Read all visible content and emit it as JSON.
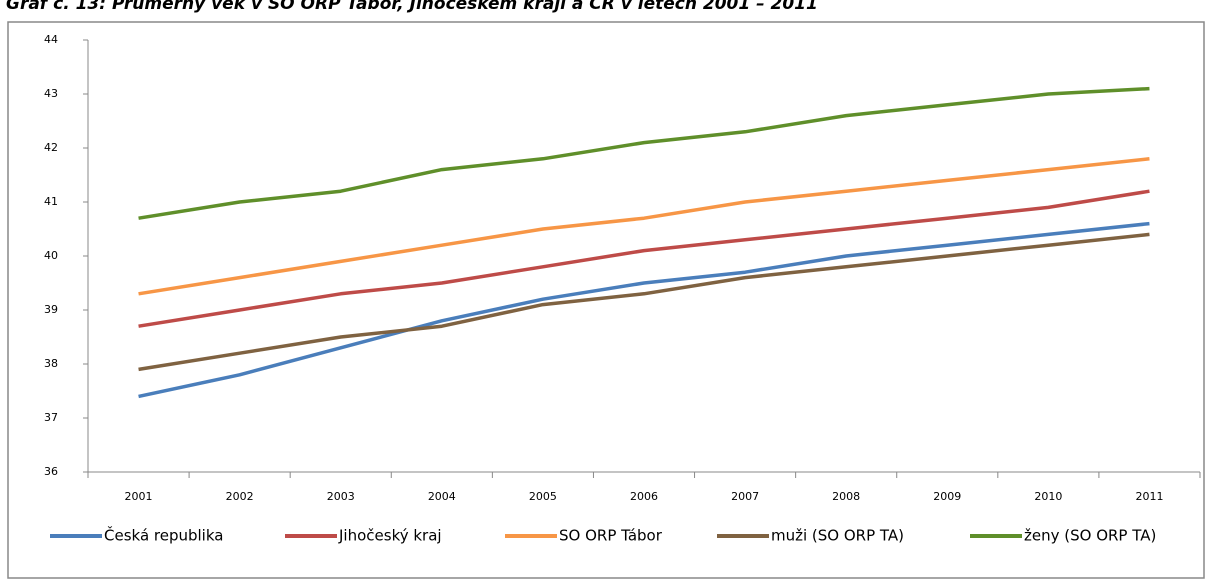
{
  "chart_data": {
    "type": "line",
    "title": "Graf č. 13: Průměrný věk v SO ORP Tábor, Jihočeském kraji a ČR v letech 2001 – 2011",
    "categories": [
      "2001",
      "2002",
      "2003",
      "2004",
      "2005",
      "2006",
      "2007",
      "2008",
      "2009",
      "2010",
      "2011"
    ],
    "series": [
      {
        "name": "Česká republika",
        "color": "#4a7ebb",
        "values": [
          37.4,
          37.8,
          38.3,
          38.8,
          39.2,
          39.5,
          39.7,
          40.0,
          40.2,
          40.4,
          40.6
        ]
      },
      {
        "name": "Jihočeský kraj",
        "color": "#be4b48",
        "values": [
          38.7,
          39.0,
          39.3,
          39.5,
          39.8,
          40.1,
          40.3,
          40.5,
          40.7,
          40.9,
          41.2
        ]
      },
      {
        "name": "SO ORP Tábor",
        "color": "#f79646",
        "values": [
          39.3,
          39.6,
          39.9,
          40.2,
          40.5,
          40.7,
          41.0,
          41.2,
          41.4,
          41.6,
          41.8
        ]
      },
      {
        "name": "muži (SO ORP TA)",
        "color": "#7f6241",
        "values": [
          37.9,
          38.2,
          38.5,
          38.7,
          39.1,
          39.3,
          39.6,
          39.8,
          40.0,
          40.2,
          40.4
        ]
      },
      {
        "name": "ženy (SO ORP TA)",
        "color": "#5f8f2a",
        "values": [
          40.7,
          41.0,
          41.2,
          41.6,
          41.8,
          42.1,
          42.3,
          42.6,
          42.8,
          43.0,
          43.1
        ]
      }
    ],
    "ylim": [
      36,
      44
    ],
    "yticks": [
      36,
      37,
      38,
      39,
      40,
      41,
      42,
      43,
      44
    ],
    "legend": "bottom"
  }
}
